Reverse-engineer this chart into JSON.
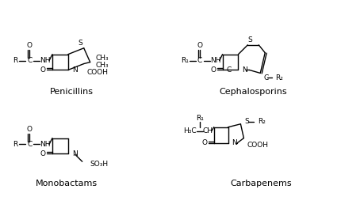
{
  "bg_color": "#ffffff",
  "line_color": "#000000",
  "text_color": "#000000",
  "figsize": [
    4.3,
    2.68
  ],
  "dpi": 100,
  "labels": {
    "penicillins": "Penicillins",
    "cephalosporins": "Cephalosporins",
    "monobactams": "Monobactams",
    "carbapenems": "Carbapenems"
  },
  "label_fontsize": 8,
  "chem_fontsize": 6.5,
  "lw": 1.0
}
